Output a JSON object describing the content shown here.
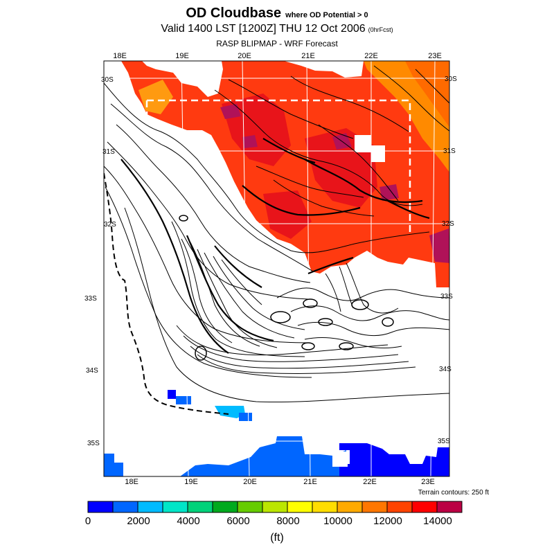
{
  "title": {
    "main": "OD Cloudbase",
    "qualifier": "where OD Potential > 0",
    "valid": "Valid 1400 LST [1200Z] THU 12 Oct 2006",
    "forecast_tag": "(0hrFcst)",
    "model": "RASP BLIPMAP - WRF Forecast"
  },
  "map": {
    "lon_labels_top": [
      "18E",
      "19E",
      "20E",
      "21E",
      "22E",
      "23E"
    ],
    "lon_labels_bottom": [
      "18E",
      "19E",
      "20E",
      "21E",
      "22E",
      "23E"
    ],
    "lat_labels_left": [
      "30S",
      "31S",
      "32S",
      "33S",
      "34S",
      "35S"
    ],
    "lat_labels_right": [
      "30S",
      "31S",
      "32S",
      "33S",
      "34S",
      "35S"
    ],
    "terrain_note": "Terrain contours: 250 ft",
    "colors": {
      "frame": "#000000",
      "gridline": "#ffffff",
      "contour": "#000000",
      "inner_domain": "#ffffff"
    }
  },
  "colorbar": {
    "colors": [
      "#0000ff",
      "#0066ff",
      "#00bbff",
      "#00e6c8",
      "#00d27a",
      "#00aa1e",
      "#66cc00",
      "#bbe600",
      "#ffff00",
      "#ffdd00",
      "#ffaa00",
      "#ff7700",
      "#ff4400",
      "#ff0000",
      "#bb0044"
    ],
    "tick_labels": [
      "0",
      "2000",
      "4000",
      "6000",
      "8000",
      "10000",
      "12000",
      "14000"
    ],
    "units": "(ft)"
  }
}
